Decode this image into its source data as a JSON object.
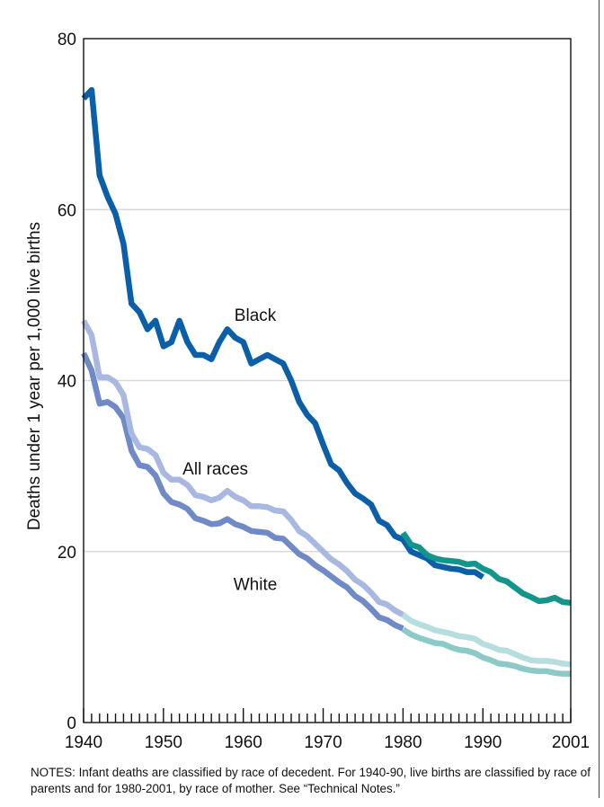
{
  "chart_data": {
    "type": "line",
    "ylabel": "Deaths under 1 year per 1,000 live births",
    "xlabel": "",
    "xlim": [
      1940,
      2001
    ],
    "ylim": [
      0,
      80
    ],
    "x_ticks": [
      1940,
      1950,
      1960,
      1970,
      1980,
      1990,
      2001
    ],
    "y_ticks": [
      0,
      20,
      40,
      60,
      80
    ],
    "grid": "horizontal",
    "series": [
      {
        "name": "Black",
        "label": "Black",
        "color": "#0b5fa8",
        "x": [
          1940,
          1941,
          1942,
          1943,
          1944,
          1945,
          1946,
          1947,
          1948,
          1949,
          1950,
          1951,
          1952,
          1953,
          1954,
          1955,
          1956,
          1957,
          1958,
          1959,
          1960,
          1961,
          1962,
          1963,
          1964,
          1965,
          1966,
          1967,
          1968,
          1969,
          1970,
          1971,
          1972,
          1973,
          1974,
          1975,
          1976,
          1977,
          1978,
          1979,
          1980,
          1981,
          1982,
          1983,
          1984,
          1985,
          1986,
          1987,
          1988,
          1989,
          1990
        ],
        "y": [
          73.0,
          74.0,
          64.0,
          61.5,
          59.5,
          56.0,
          49.0,
          48.0,
          46.0,
          47.0,
          44.0,
          44.5,
          47.0,
          44.5,
          43.0,
          43.0,
          42.5,
          44.5,
          46.0,
          45.0,
          44.5,
          42.0,
          42.5,
          43.0,
          42.5,
          42.0,
          40.0,
          37.5,
          36.0,
          35.0,
          32.5,
          30.2,
          29.5,
          28.0,
          26.8,
          26.2,
          25.5,
          23.6,
          23.1,
          21.8,
          21.4,
          20.0,
          19.6,
          19.2,
          18.4,
          18.2,
          18.0,
          17.9,
          17.6,
          17.6,
          17.0
        ]
      },
      {
        "name": "All races",
        "label": "All races",
        "color": "#a9b8e0",
        "x": [
          1940,
          1941,
          1942,
          1943,
          1944,
          1945,
          1946,
          1947,
          1948,
          1949,
          1950,
          1951,
          1952,
          1953,
          1954,
          1955,
          1956,
          1957,
          1958,
          1959,
          1960,
          1961,
          1962,
          1963,
          1964,
          1965,
          1966,
          1967,
          1968,
          1969,
          1970,
          1971,
          1972,
          1973,
          1974,
          1975,
          1976,
          1977,
          1978,
          1979,
          1980
        ],
        "y": [
          47.0,
          45.3,
          40.4,
          40.4,
          39.8,
          38.3,
          33.8,
          32.2,
          32.0,
          31.3,
          29.2,
          28.4,
          28.4,
          27.8,
          26.6,
          26.4,
          26.0,
          26.3,
          27.1,
          26.4,
          26.0,
          25.3,
          25.3,
          25.2,
          24.8,
          24.7,
          23.7,
          22.4,
          21.8,
          20.9,
          20.0,
          19.1,
          18.5,
          17.7,
          16.7,
          16.1,
          15.2,
          14.1,
          13.8,
          13.1,
          12.6
        ]
      },
      {
        "name": "White",
        "label": "White",
        "color": "#6f8ac7",
        "x": [
          1940,
          1941,
          1942,
          1943,
          1944,
          1945,
          1946,
          1947,
          1948,
          1949,
          1950,
          1951,
          1952,
          1953,
          1954,
          1955,
          1956,
          1957,
          1958,
          1959,
          1960,
          1961,
          1962,
          1963,
          1964,
          1965,
          1966,
          1967,
          1968,
          1969,
          1970,
          1971,
          1972,
          1973,
          1974,
          1975,
          1976,
          1977,
          1978,
          1979,
          1980
        ],
        "y": [
          43.2,
          41.2,
          37.3,
          37.5,
          36.9,
          35.6,
          31.8,
          30.1,
          29.9,
          28.9,
          26.8,
          25.8,
          25.5,
          25.0,
          23.9,
          23.6,
          23.2,
          23.3,
          23.8,
          23.2,
          22.9,
          22.4,
          22.3,
          22.2,
          21.6,
          21.5,
          20.6,
          19.7,
          19.2,
          18.4,
          17.8,
          17.1,
          16.4,
          15.8,
          14.8,
          14.2,
          13.3,
          12.3,
          12.0,
          11.4,
          11.0
        ]
      },
      {
        "name": "Black (by race of mother)",
        "color": "#12958a",
        "x": [
          1980,
          1981,
          1982,
          1983,
          1984,
          1985,
          1986,
          1987,
          1988,
          1989,
          1990,
          1991,
          1992,
          1993,
          1994,
          1995,
          1996,
          1997,
          1998,
          1999,
          2000,
          2001
        ],
        "y": [
          22.2,
          20.8,
          20.5,
          19.6,
          19.2,
          19.0,
          18.9,
          18.8,
          18.5,
          18.6,
          18.0,
          17.6,
          16.8,
          16.5,
          15.8,
          15.1,
          14.7,
          14.2,
          14.3,
          14.6,
          14.1,
          14.0
        ]
      },
      {
        "name": "All races (by race of mother)",
        "color": "#b7dede",
        "x": [
          1980,
          1981,
          1982,
          1983,
          1984,
          1985,
          1986,
          1987,
          1988,
          1989,
          1990,
          1991,
          1992,
          1993,
          1994,
          1995,
          1996,
          1997,
          1998,
          1999,
          2000,
          2001
        ],
        "y": [
          12.6,
          11.9,
          11.5,
          11.2,
          10.8,
          10.6,
          10.4,
          10.1,
          10.0,
          9.8,
          9.2,
          8.9,
          8.5,
          8.4,
          8.0,
          7.6,
          7.3,
          7.2,
          7.2,
          7.1,
          6.9,
          6.8
        ]
      },
      {
        "name": "White (by race of mother)",
        "color": "#8ccac8",
        "x": [
          1980,
          1981,
          1982,
          1983,
          1984,
          1985,
          1986,
          1987,
          1988,
          1989,
          1990,
          1991,
          1992,
          1993,
          1994,
          1995,
          1996,
          1997,
          1998,
          1999,
          2000,
          2001
        ],
        "y": [
          10.9,
          10.3,
          9.9,
          9.6,
          9.3,
          9.2,
          8.8,
          8.5,
          8.4,
          8.1,
          7.6,
          7.3,
          6.9,
          6.8,
          6.6,
          6.3,
          6.1,
          6.0,
          6.0,
          5.8,
          5.7,
          5.7
        ]
      }
    ]
  },
  "notes": "NOTES: Infant deaths are classified by race of decedent.  For 1940-90, live births are classified by race of parents and for 1980-2001, by race of mother. See “Technical Notes.”"
}
